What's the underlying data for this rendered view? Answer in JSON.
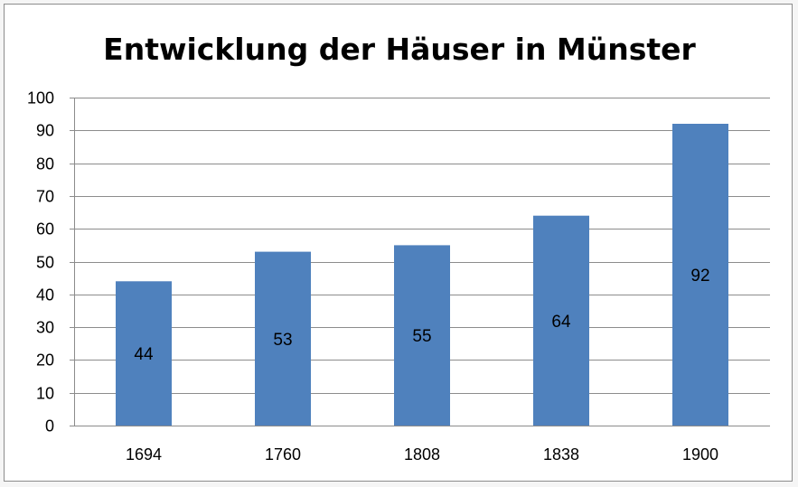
{
  "chart_data": {
    "type": "bar",
    "title": "Entwicklung der Häuser in Münster",
    "xlabel": "",
    "ylabel": "",
    "categories": [
      "1694",
      "1760",
      "1808",
      "1838",
      "1900"
    ],
    "series": [
      {
        "values": [
          44,
          53,
          55,
          64,
          92
        ],
        "color": "#4f81bd"
      }
    ],
    "ylim": [
      0,
      100
    ],
    "yticks": [
      0,
      10,
      20,
      30,
      40,
      50,
      60,
      70,
      80,
      90,
      100
    ],
    "data_labels": [
      "44",
      "53",
      "55",
      "64",
      "92"
    ],
    "grid": true,
    "legend": "none"
  }
}
